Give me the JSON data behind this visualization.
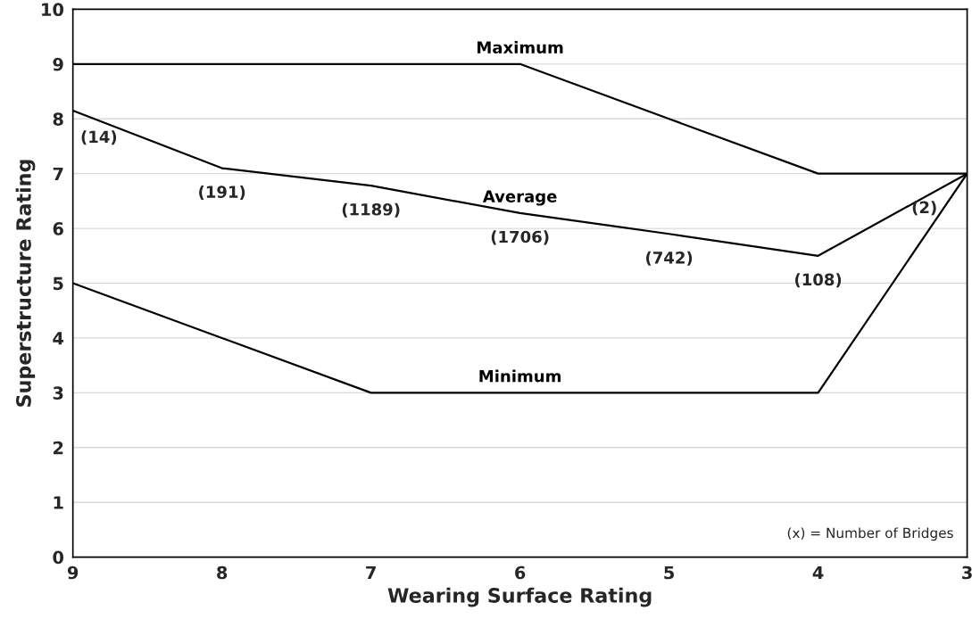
{
  "chart_data": {
    "type": "line",
    "xlabel": "Wearing Surface Rating",
    "ylabel": "Superstructure Rating",
    "x": [
      9,
      8,
      7,
      6,
      5,
      4,
      3
    ],
    "series": [
      {
        "name": "Maximum",
        "color": "#000000",
        "values": [
          9,
          9,
          9,
          9,
          8,
          7,
          7
        ]
      },
      {
        "name": "Average",
        "color": "#000000",
        "values": [
          8.15,
          7.1,
          6.78,
          6.28,
          5.9,
          5.5,
          7.0
        ]
      },
      {
        "name": "Minimum",
        "color": "#000000",
        "values": [
          5,
          4,
          3,
          3,
          3,
          3,
          7
        ]
      }
    ],
    "annotations": [
      {
        "text": "(14)",
        "x": 9,
        "y": 8.15
      },
      {
        "text": "(191)",
        "x": 8,
        "y": 7.1
      },
      {
        "text": "(1189)",
        "x": 7,
        "y": 6.78
      },
      {
        "text": "(1706)",
        "x": 6,
        "y": 6.28
      },
      {
        "text": "(742)",
        "x": 5,
        "y": 5.9
      },
      {
        "text": "(108)",
        "x": 4,
        "y": 5.5
      },
      {
        "text": "(2)",
        "x": 3,
        "y": 7.0
      },
      "(x) = Number of Bridges"
    ],
    "xlim": [
      9,
      3
    ],
    "xticks": [
      9,
      8,
      7,
      6,
      5,
      4,
      3
    ],
    "ylim": [
      0,
      10
    ],
    "yticks": [
      0,
      1,
      2,
      3,
      4,
      5,
      6,
      7,
      8,
      9,
      10
    ],
    "grid": "y",
    "legend": false,
    "marker": "none",
    "line_style": "solid"
  }
}
